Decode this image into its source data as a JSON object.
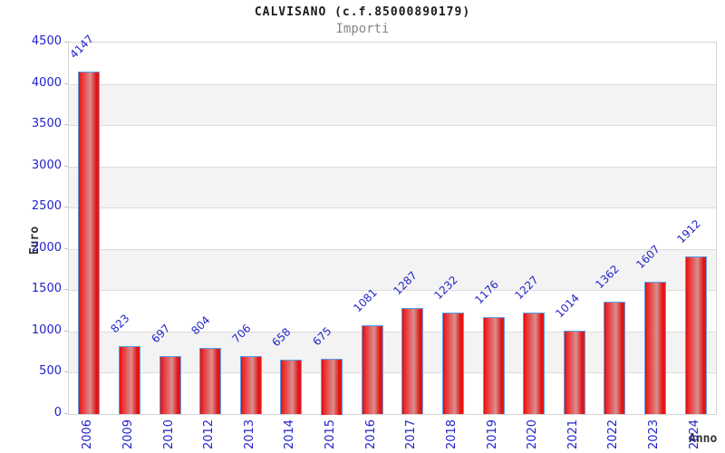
{
  "chart_data": {
    "type": "bar",
    "title": "CALVISANO (c.f.85000890179)",
    "subtitle": "Importi",
    "xlabel": "Anno",
    "ylabel": "Euro",
    "categories": [
      "2006",
      "2009",
      "2010",
      "2012",
      "2013",
      "2014",
      "2015",
      "2016",
      "2017",
      "2018",
      "2019",
      "2020",
      "2021",
      "2022",
      "2023",
      "2024"
    ],
    "values": [
      4147,
      823,
      697,
      804,
      706,
      658,
      675,
      1081,
      1287,
      1232,
      1176,
      1227,
      1014,
      1362,
      1607,
      1912
    ],
    "ylim": [
      0,
      4500
    ],
    "ytick_step": 500,
    "grid": true,
    "legend": "none",
    "colors": {
      "bar_fill": "#e01212",
      "bar_highlight": "#d98f8f",
      "bar_border": "#58a0e8",
      "tick_label": "#2222cc",
      "value_label": "#2227c8",
      "band": "#f3f3f3",
      "gridline": "#dcdcdc",
      "plot_border": "#d4d4d4",
      "title_text": "#1a1a1a",
      "subtitle_text": "#878787",
      "axis_title_text": "#333333"
    }
  }
}
